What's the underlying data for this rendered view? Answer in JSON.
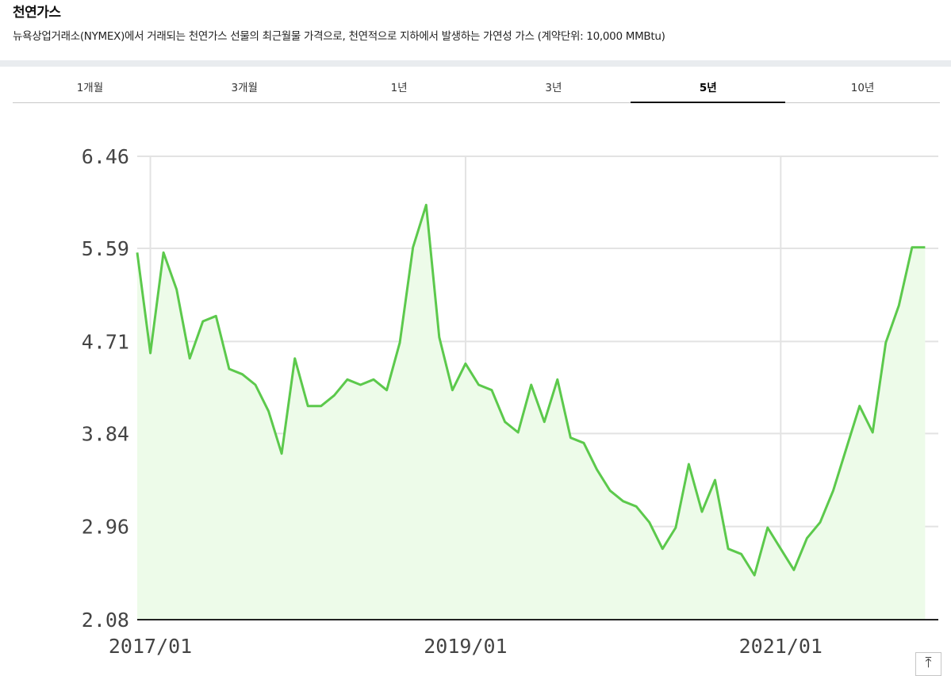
{
  "header": {
    "title": "천연가스",
    "description": "뉴욕상업거래소(NYMEX)에서 거래되는 천연가스 선물의 최근월물 가격으로, 천연적으로 지하에서 발생하는 가연성 가스 (계약단위: 10,000 MMBtu)"
  },
  "tabs": [
    {
      "label": "1개월",
      "active": false
    },
    {
      "label": "3개월",
      "active": false
    },
    {
      "label": "1년",
      "active": false
    },
    {
      "label": "3년",
      "active": false
    },
    {
      "label": "5년",
      "active": true
    },
    {
      "label": "10년",
      "active": false
    }
  ],
  "scroll_top_icon": "arrow-up-to-top-icon",
  "chart_data": {
    "type": "area",
    "title": "",
    "xlabel": "",
    "ylabel": "",
    "y_ticks": [
      "6.46",
      "5.59",
      "4.71",
      "3.84",
      "2.96",
      "2.08"
    ],
    "ylim": [
      2.08,
      6.46
    ],
    "x_ticks": [
      "2017/01",
      "2019/01",
      "2021/01"
    ],
    "xlim": [
      "2016/12",
      "2022/01"
    ],
    "grid": true,
    "line_color": "#5cc94c",
    "fill_color": "#edfbe9",
    "series": [
      {
        "x": [
          "2016/12",
          "2017/01",
          "2017/02",
          "2017/03",
          "2017/04",
          "2017/05",
          "2017/06",
          "2017/07",
          "2017/08",
          "2017/09",
          "2017/10",
          "2017/11",
          "2017/12",
          "2018/01",
          "2018/02",
          "2018/03",
          "2018/04",
          "2018/05",
          "2018/06",
          "2018/07",
          "2018/08",
          "2018/09",
          "2018/10",
          "2018/11",
          "2018/12",
          "2019/01",
          "2019/02",
          "2019/03",
          "2019/04",
          "2019/05",
          "2019/06",
          "2019/07",
          "2019/08",
          "2019/09",
          "2019/10",
          "2019/11",
          "2019/12",
          "2020/01",
          "2020/02",
          "2020/03",
          "2020/04",
          "2020/05",
          "2020/06",
          "2020/07",
          "2020/08",
          "2020/09",
          "2020/10",
          "2020/11",
          "2020/12",
          "2021/01",
          "2021/02",
          "2021/03",
          "2021/04",
          "2021/05",
          "2021/06",
          "2021/07",
          "2021/08",
          "2021/09",
          "2021/10",
          "2021/11",
          "2021/12"
        ],
        "values": [
          5.55,
          4.6,
          5.55,
          5.2,
          4.55,
          4.9,
          4.95,
          4.45,
          4.4,
          4.3,
          4.05,
          3.65,
          4.55,
          4.1,
          4.1,
          4.2,
          4.35,
          4.3,
          4.35,
          4.25,
          4.7,
          5.6,
          6.0,
          4.75,
          4.25,
          4.5,
          4.3,
          4.25,
          3.95,
          3.85,
          4.3,
          3.95,
          4.35,
          3.8,
          3.75,
          3.5,
          3.3,
          3.2,
          3.15,
          3.0,
          2.75,
          2.95,
          3.55,
          3.1,
          3.4,
          2.75,
          2.7,
          2.5,
          2.95,
          2.75,
          2.55,
          2.85,
          3.0,
          3.3,
          3.7,
          4.1,
          3.85,
          4.7,
          5.05,
          5.6,
          5.6
        ]
      }
    ]
  }
}
